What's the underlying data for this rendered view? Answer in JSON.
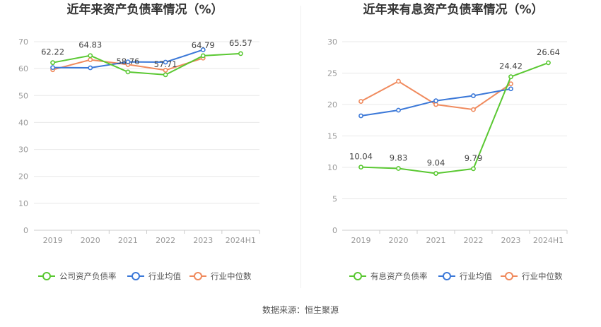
{
  "source_text": "数据来源：恒生聚源",
  "chart_data": [
    {
      "type": "line",
      "title": "近年来资产负债率情况（%）",
      "categories": [
        "2019",
        "2020",
        "2021",
        "2022",
        "2023",
        "2024H1"
      ],
      "ylim": [
        0,
        70
      ],
      "yticks": [
        0,
        10,
        20,
        30,
        40,
        50,
        60,
        70
      ],
      "grid": true,
      "legend_position": "bottom",
      "series": [
        {
          "name": "公司资产负债率",
          "color": "#5ac832",
          "values": [
            62.22,
            64.83,
            58.76,
            57.71,
            64.79,
            65.57
          ],
          "labels": [
            "62.22",
            "64.83",
            "58.76",
            "57.71",
            "64.79",
            "65.57"
          ]
        },
        {
          "name": "行业均值",
          "color": "#3b78d8",
          "values": [
            60.4,
            60.3,
            62.5,
            62.4,
            67.0,
            null
          ]
        },
        {
          "name": "行业中位数",
          "color": "#f08a5d",
          "values": [
            59.6,
            63.3,
            61.5,
            59.4,
            63.9,
            null
          ]
        }
      ]
    },
    {
      "type": "line",
      "title": "近年来有息资产负债率情况（%）",
      "categories": [
        "2019",
        "2020",
        "2021",
        "2022",
        "2023",
        "2024H1"
      ],
      "ylim": [
        0,
        30
      ],
      "yticks": [
        0,
        5,
        10,
        15,
        20,
        25,
        30
      ],
      "grid": true,
      "legend_position": "bottom",
      "series": [
        {
          "name": "有息资产负债率",
          "color": "#5ac832",
          "values": [
            10.04,
            9.83,
            9.04,
            9.79,
            24.42,
            26.64
          ],
          "labels": [
            "10.04",
            "9.83",
            "9.04",
            "9.79",
            "24.42",
            "26.64"
          ]
        },
        {
          "name": "行业均值",
          "color": "#3b78d8",
          "values": [
            18.2,
            19.1,
            20.6,
            21.4,
            22.5,
            null
          ]
        },
        {
          "name": "行业中位数",
          "color": "#f08a5d",
          "values": [
            20.5,
            23.7,
            20.0,
            19.2,
            23.3,
            null
          ]
        }
      ]
    }
  ]
}
